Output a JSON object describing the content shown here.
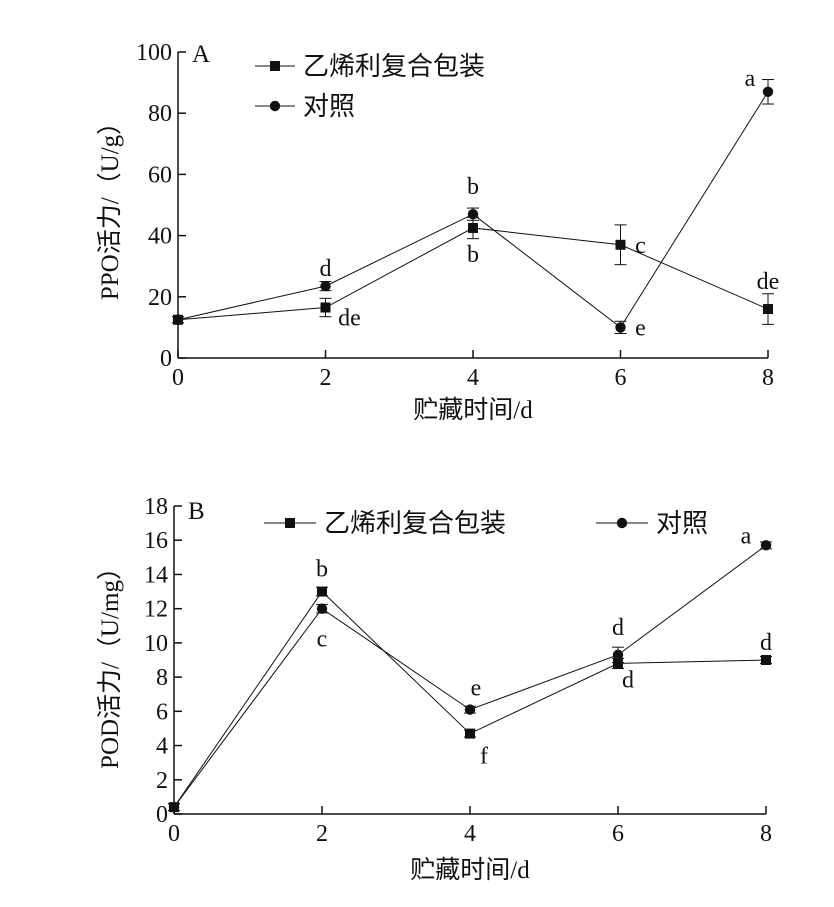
{
  "chart_data": [
    {
      "type": "line",
      "panel": "A",
      "xlabel": "贮藏时间/d",
      "ylabel": "PPO活力/（U/g）",
      "xlim": [
        0,
        8
      ],
      "ylim": [
        0,
        100
      ],
      "xticks": [
        "0",
        "2",
        "4",
        "6",
        "8"
      ],
      "yticks": [
        "0",
        "20",
        "40",
        "60",
        "80",
        "100"
      ],
      "x": [
        0,
        2,
        4,
        6,
        8
      ],
      "legend": "top-left",
      "grid": false,
      "series": [
        {
          "name": "乙烯利复合包装",
          "marker": "square-icon",
          "values": [
            12.5,
            16.5,
            42.5,
            37,
            16
          ],
          "errors": [
            1,
            3,
            3.5,
            6.5,
            5
          ],
          "letters": [
            "",
            "de",
            "b",
            "c",
            "de"
          ]
        },
        {
          "name": "对照",
          "marker": "circle-icon",
          "values": [
            12.5,
            23.5,
            47,
            10,
            87
          ],
          "errors": [
            1,
            1.5,
            2,
            2,
            4
          ],
          "letters": [
            "",
            "d",
            "b",
            "e",
            "a"
          ]
        }
      ]
    },
    {
      "type": "line",
      "panel": "B",
      "xlabel": "贮藏时间/d",
      "ylabel": "POD活力/（U/mg）",
      "xlim": [
        0,
        8
      ],
      "ylim": [
        0,
        18
      ],
      "xticks": [
        "0",
        "2",
        "4",
        "6",
        "8"
      ],
      "yticks": [
        "0",
        "2",
        "4",
        "6",
        "8",
        "10",
        "12",
        "14",
        "16",
        "18"
      ],
      "x": [
        0,
        2,
        4,
        6,
        8
      ],
      "legend": "top",
      "grid": false,
      "series": [
        {
          "name": "乙烯利复合包装",
          "marker": "square-icon",
          "values": [
            0.4,
            13,
            4.7,
            8.8,
            9
          ],
          "errors": [
            0.2,
            0.25,
            0.2,
            0.3,
            0.2
          ],
          "letters": [
            "",
            "b",
            "f",
            "d",
            "d"
          ]
        },
        {
          "name": "对照",
          "marker": "circle-icon",
          "values": [
            0.4,
            12,
            6.1,
            9.3,
            15.7
          ],
          "errors": [
            0.2,
            0.25,
            0.2,
            0.45,
            0.2
          ],
          "letters": [
            "",
            "c",
            "e",
            "d",
            "a"
          ]
        }
      ]
    }
  ]
}
